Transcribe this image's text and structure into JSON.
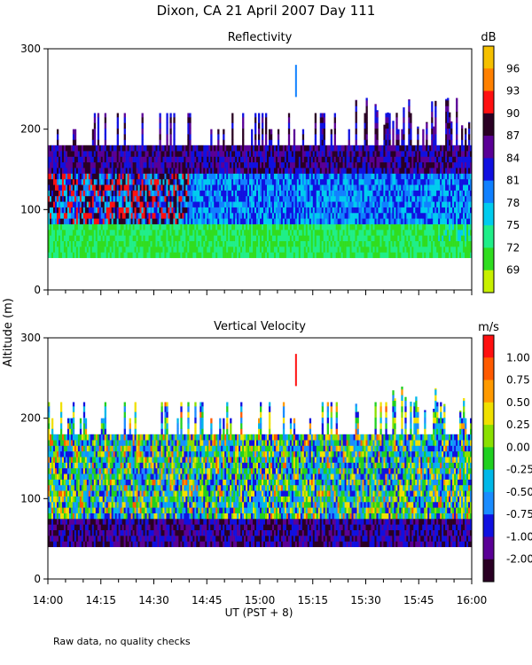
{
  "figure": {
    "title": "Dixon, CA 21 April 2007  Day 111",
    "shared_ylabel": "Altitude (m)",
    "xlabel": "UT  (PST + 8)",
    "footnote": "Raw data, no quality checks"
  },
  "chart_data": [
    {
      "type": "heatmap",
      "title": "Reflectivity",
      "x_ticks": [
        "14:00",
        "14:15",
        "14:30",
        "14:45",
        "15:00",
        "15:15",
        "15:30",
        "15:45",
        "16:00"
      ],
      "x_range_minutes_ut": [
        840,
        960
      ],
      "ylim": [
        0,
        300
      ],
      "y_ticks": [
        0,
        100,
        200,
        300
      ],
      "colorbar": {
        "unit": "dB",
        "ticks": [
          "96",
          "93",
          "90",
          "87",
          "84",
          "81",
          "78",
          "75",
          "72",
          "69"
        ],
        "colors": [
          "#f5c000",
          "#ff8000",
          "#ff1010",
          "#2a0024",
          "#5a0096",
          "#1010e0",
          "#1080ff",
          "#00ccee",
          "#20ee88",
          "#30dd20",
          "#c8f000"
        ]
      },
      "data_summary": {
        "echo_base_m": 40,
        "layers": [
          {
            "altitude_m": [
              40,
              80
            ],
            "value_range_db": [
              72,
              78
            ]
          },
          {
            "altitude_m": [
              80,
              140
            ],
            "value_range_db": [
              78,
              90
            ]
          },
          {
            "altitude_m": [
              140,
              200
            ],
            "value_range_db": [
              81,
              87
            ]
          }
        ],
        "early_period_core": {
          "time_ut": [
            "14:00",
            "14:40"
          ],
          "altitude_m": [
            80,
            160
          ],
          "value_range_db": [
            87,
            91
          ]
        },
        "top_height_m": [
          180,
          240
        ],
        "isolated_echo": {
          "time_ut": "15:10",
          "altitude_m": [
            240,
            280
          ],
          "value_db": 78
        }
      }
    },
    {
      "type": "heatmap",
      "title": "Vertical Velocity",
      "x_ticks": [
        "14:00",
        "14:15",
        "14:30",
        "14:45",
        "15:00",
        "15:15",
        "15:30",
        "15:45",
        "16:00"
      ],
      "x_range_minutes_ut": [
        840,
        960
      ],
      "ylim": [
        0,
        300
      ],
      "y_ticks": [
        0,
        100,
        200,
        300
      ],
      "colorbar": {
        "unit": "m/s",
        "ticks": [
          "1.00",
          "0.75",
          "0.50",
          "0.25",
          "0.00",
          "-0.25",
          "-0.50",
          "-0.75",
          "-1.00",
          "-2.00"
        ],
        "colors": [
          "#ff1010",
          "#ff5a00",
          "#ff9a00",
          "#f0e000",
          "#8ae000",
          "#20d020",
          "#00b8e8",
          "#1a8cff",
          "#1010e0",
          "#5a0096",
          "#2a0024"
        ]
      },
      "data_summary": {
        "echo_base_m": 40,
        "layers": [
          {
            "altitude_m": [
              40,
              70
            ],
            "value_range_ms": [
              -2.0,
              -0.5
            ]
          },
          {
            "altitude_m": [
              70,
              200
            ],
            "value_range_ms": [
              -0.5,
              0.75
            ]
          }
        ],
        "top_height_m": [
          180,
          240
        ],
        "isolated_echo": {
          "time_ut": "15:10",
          "altitude_m": [
            240,
            280
          ],
          "value_ms": 1.0
        }
      }
    }
  ]
}
